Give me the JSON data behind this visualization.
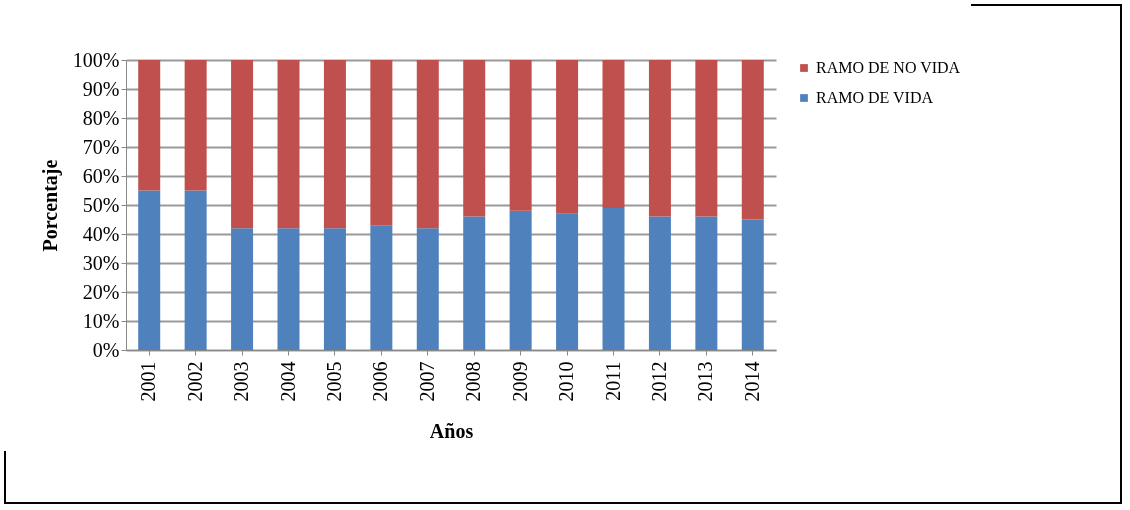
{
  "chart_data": {
    "type": "bar",
    "stacked": true,
    "xlabel": "Años",
    "ylabel": "Porcentaje",
    "categories": [
      "2001",
      "2002",
      "2003",
      "2004",
      "2005",
      "2006",
      "2007",
      "2008",
      "2009",
      "2010",
      "2011",
      "2012",
      "2013",
      "2014"
    ],
    "series": [
      {
        "name": "RAMO DE VIDA",
        "color": "#4f81bd",
        "values": [
          55,
          55,
          42,
          42,
          42,
          43,
          42,
          46,
          48,
          47,
          49,
          46,
          46,
          45
        ]
      },
      {
        "name": "RAMO DE NO VIDA",
        "color": "#c0504d",
        "values": [
          45,
          45,
          58,
          58,
          58,
          57,
          58,
          54,
          52,
          53,
          51,
          54,
          54,
          55
        ]
      }
    ],
    "ylim": [
      0,
      100
    ],
    "yticks": [
      {
        "value": 0,
        "label": "0%"
      },
      {
        "value": 10,
        "label": "10%"
      },
      {
        "value": 20,
        "label": "20%"
      },
      {
        "value": 30,
        "label": "30%"
      },
      {
        "value": 40,
        "label": "40%"
      },
      {
        "value": 50,
        "label": "50%"
      },
      {
        "value": 60,
        "label": "60%"
      },
      {
        "value": 70,
        "label": "70%"
      },
      {
        "value": 80,
        "label": "80%"
      },
      {
        "value": 90,
        "label": "90%"
      },
      {
        "value": 100,
        "label": "100%"
      }
    ],
    "grid": "y",
    "legend": "right"
  }
}
